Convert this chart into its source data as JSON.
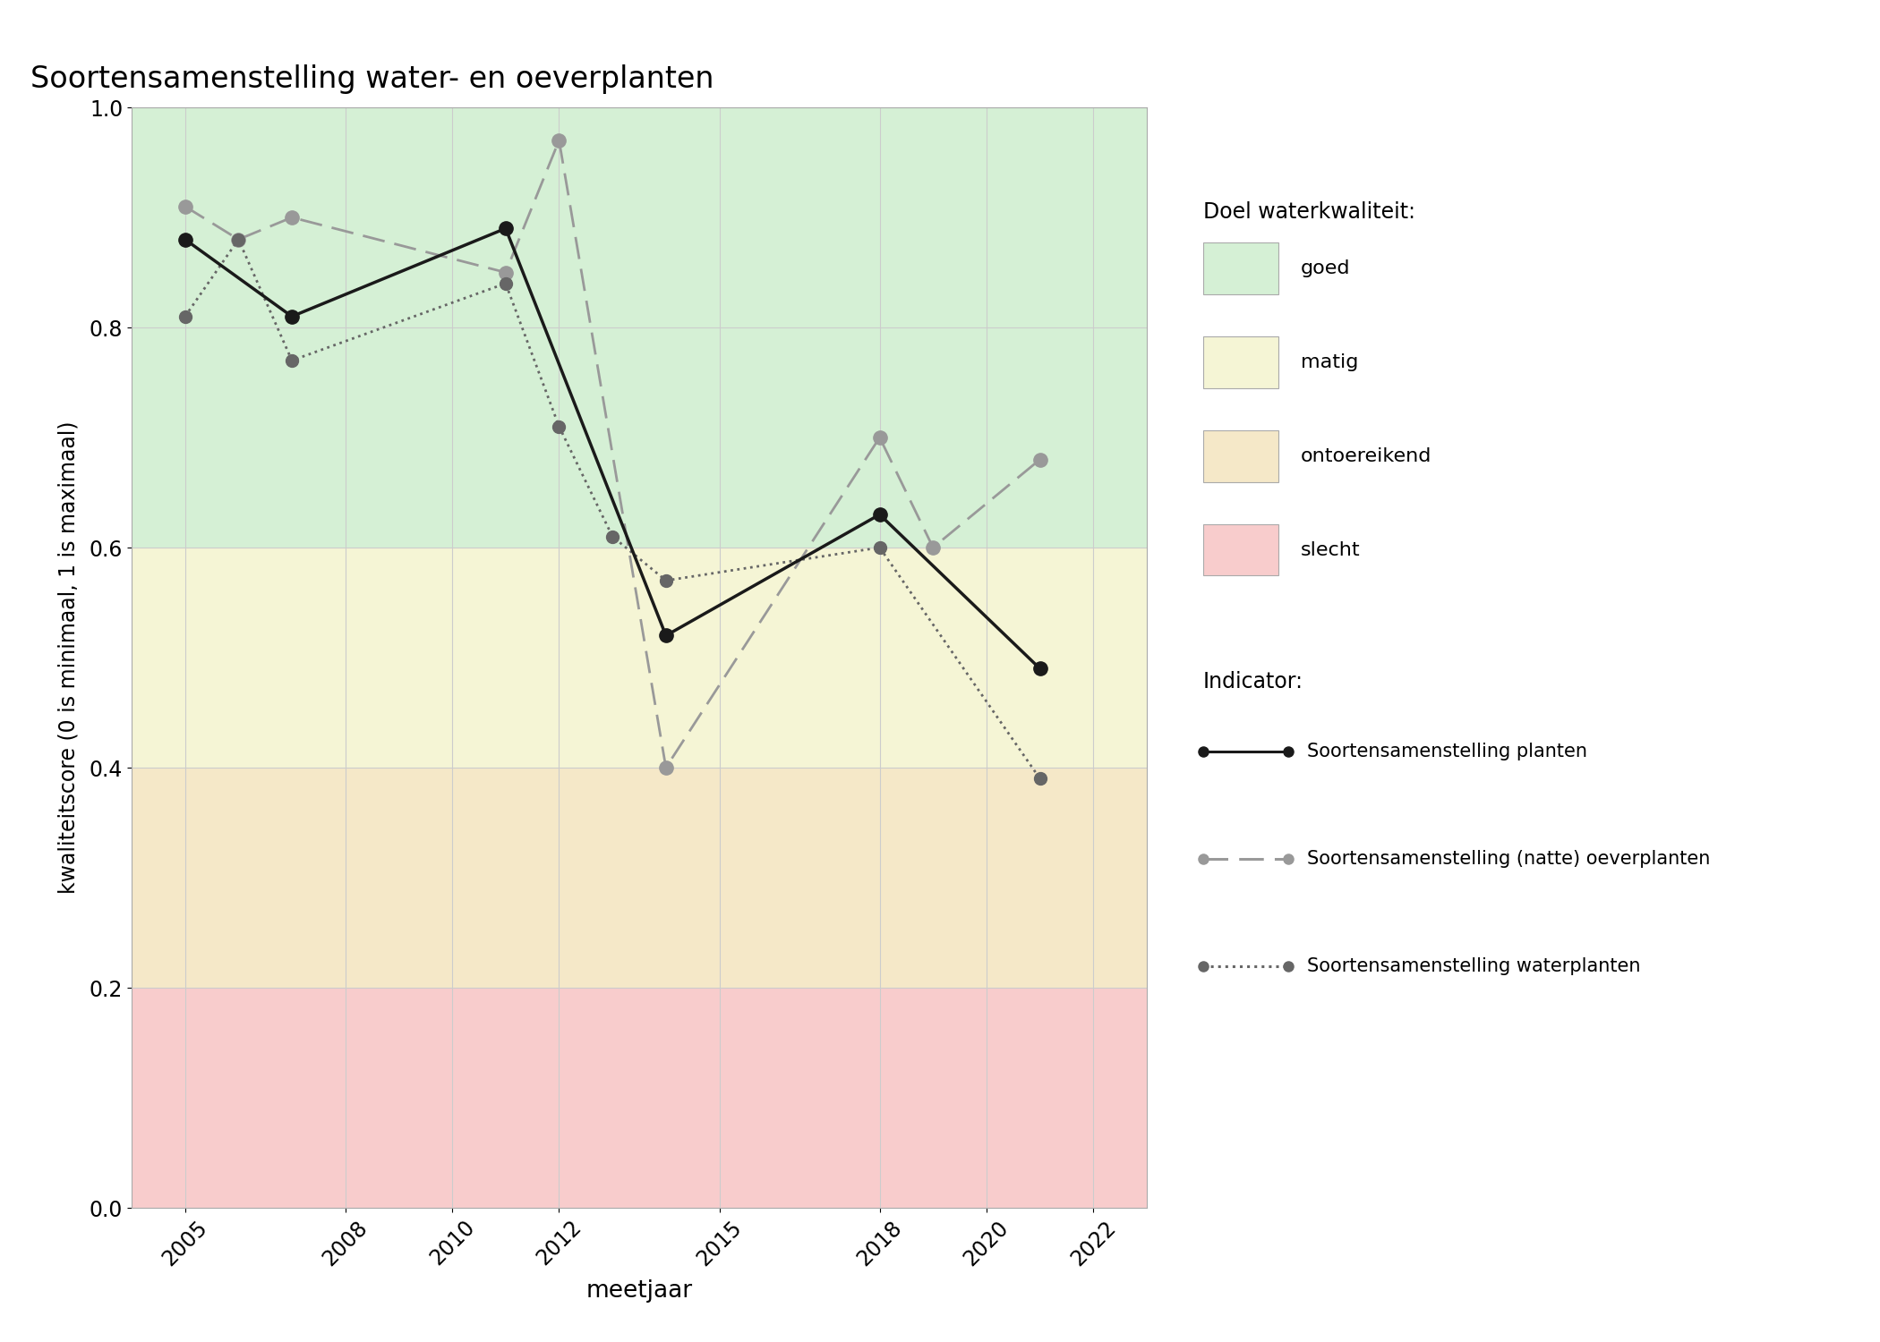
{
  "title": "Soortensamenstelling water- en oeverplanten",
  "xlabel": "meetjaar",
  "ylabel": "kwaliteitscore (0 is minimaal, 1 is maximaal)",
  "xlim": [
    2004,
    2023
  ],
  "ylim": [
    0.0,
    1.0
  ],
  "xticks": [
    2005,
    2008,
    2010,
    2012,
    2015,
    2018,
    2020,
    2022
  ],
  "yticks": [
    0.0,
    0.2,
    0.4,
    0.6,
    0.8,
    1.0
  ],
  "bg_colors": {
    "goed": "#d5f0d5",
    "matig": "#f5f5d5",
    "ontoereikend": "#f5e8c8",
    "slecht": "#f8cccc"
  },
  "bg_thresholds": {
    "goed_min": 0.6,
    "matig_min": 0.4,
    "ontoereikend_min": 0.2,
    "slecht_min": 0.0
  },
  "series_planten": {
    "x": [
      2005,
      2007,
      2011,
      2014,
      2018,
      2021
    ],
    "y": [
      0.88,
      0.81,
      0.89,
      0.52,
      0.63,
      0.49
    ],
    "color": "#1a1a1a",
    "linestyle": "solid",
    "linewidth": 2.5,
    "markersize": 11,
    "label": "Soortensamenstelling planten"
  },
  "series_oever": {
    "x": [
      2005,
      2006,
      2007,
      2011,
      2012,
      2014,
      2018,
      2019,
      2021
    ],
    "y": [
      0.91,
      0.88,
      0.9,
      0.85,
      0.97,
      0.4,
      0.7,
      0.6,
      0.68
    ],
    "color": "#999999",
    "linewidth": 2.0,
    "markersize": 11,
    "label": "Soortensamenstelling (natte) oeverplanten"
  },
  "series_water": {
    "x": [
      2005,
      2006,
      2007,
      2011,
      2012,
      2013,
      2014,
      2018,
      2021
    ],
    "y": [
      0.81,
      0.88,
      0.77,
      0.84,
      0.71,
      0.61,
      0.57,
      0.6,
      0.39
    ],
    "color": "#666666",
    "linewidth": 2.0,
    "markersize": 10,
    "label": "Soortensamenstelling waterplanten"
  },
  "grid_color": "#cccccc",
  "fig_bg": "#ffffff",
  "legend_qual_title": "Doel waterkwaliteit:",
  "legend_ind_title": "Indicator:",
  "qual_labels": [
    "goed",
    "matig",
    "ontoereikend",
    "slecht"
  ]
}
